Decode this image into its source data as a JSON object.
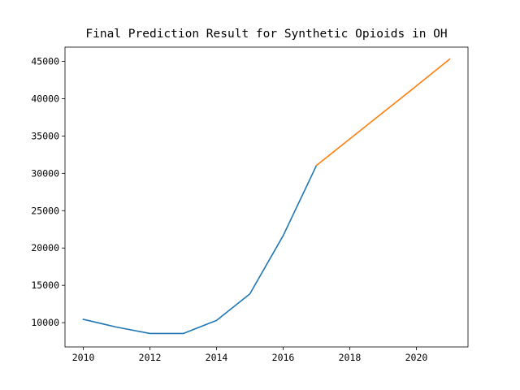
{
  "chart_data": {
    "type": "line",
    "title": "Final Prediction Result for Synthetic Opioids in OH",
    "xlabel": "",
    "ylabel": "",
    "xlim": [
      2009.45,
      2021.55
    ],
    "ylim": [
      6750,
      46900
    ],
    "x_ticks": [
      2010,
      2012,
      2014,
      2016,
      2018,
      2020
    ],
    "y_ticks": [
      10000,
      15000,
      20000,
      25000,
      30000,
      35000,
      40000,
      45000
    ],
    "grid": false,
    "legend": "none",
    "series": [
      {
        "color": "#1f77b4",
        "x": [
          2010,
          2011,
          2012,
          2013,
          2014,
          2015,
          2016,
          2017
        ],
        "y": [
          10450,
          9400,
          8550,
          8550,
          10300,
          13850,
          21650,
          31050
        ]
      },
      {
        "color": "#ff7f0e",
        "x": [
          2017,
          2018,
          2019,
          2020,
          2021
        ],
        "y": [
          31050,
          34600,
          38150,
          41700,
          45300
        ]
      }
    ]
  }
}
